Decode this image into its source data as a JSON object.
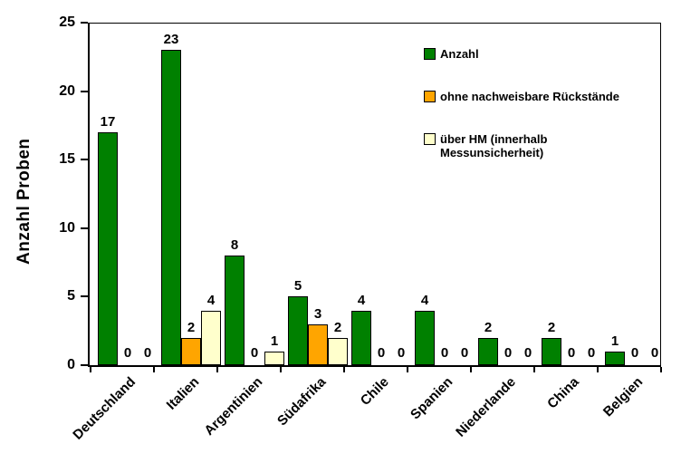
{
  "chart_data": {
    "type": "bar",
    "title": "",
    "ylabel": "Anzahl Proben",
    "xlabel": "",
    "ylim": [
      0,
      25
    ],
    "ytick_step": 5,
    "grid": false,
    "legend_position": "top-right",
    "background_color": "#FFFFFF",
    "show_zero_labels": true,
    "categories": [
      "Deutschland",
      "Italien",
      "Argentinien",
      "Südafrika",
      "Chile",
      "Spanien",
      "Niederlande",
      "China",
      "Belgien"
    ],
    "series": [
      {
        "name": "Anzahl",
        "color": "#008000",
        "values": [
          17,
          23,
          8,
          5,
          4,
          4,
          2,
          2,
          1
        ]
      },
      {
        "name": "ohne nachweisbare Rückstände",
        "color": "#FFA500",
        "values": [
          0,
          2,
          0,
          3,
          0,
          0,
          0,
          0,
          0
        ]
      },
      {
        "name": "über HM (innerhalb Messunsicherheit)",
        "color": "#FFFFCC",
        "values": [
          0,
          4,
          1,
          2,
          0,
          0,
          0,
          0,
          0
        ]
      }
    ]
  }
}
